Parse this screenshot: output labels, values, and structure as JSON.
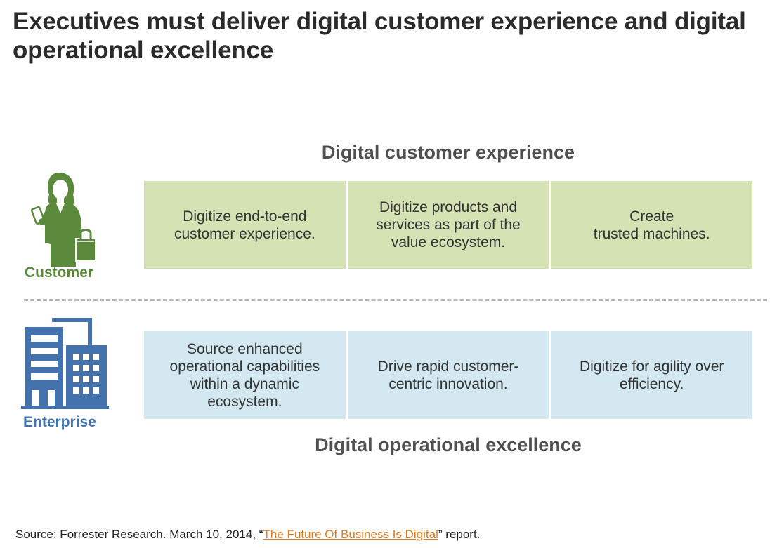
{
  "title": "Executives must deliver digital customer experience and digital operational excellence",
  "customer_section": {
    "heading": "Digital customer experience",
    "icon": "businesswoman-icon",
    "label": "Customer",
    "color": "#5b8a3c",
    "cell_color": "#d5e2b4",
    "cells": [
      [
        "Digitize end-to-end",
        "customer experience."
      ],
      [
        "Digitize products and",
        "services as part of the",
        "value ecosystem."
      ],
      [
        "Create",
        "trusted machines."
      ]
    ]
  },
  "enterprise_section": {
    "heading": "Digital operational excellence",
    "icon": "office-building-icon",
    "label": "Enterprise",
    "color": "#4472ad",
    "cell_color": "#d3e8f1",
    "cells": [
      [
        "Source enhanced",
        "operational capabilities",
        "within a dynamic",
        "ecosystem."
      ],
      [
        "Drive rapid customer-",
        "centric innovation."
      ],
      [
        "Digitize for agility over",
        "efficiency."
      ]
    ]
  },
  "source": {
    "prefix": "Source: Forrester Research.  March 10, 2014, “",
    "link_text": "The Future Of Business Is Digital",
    "suffix": "” report.",
    "link_color": "#e07b22"
  }
}
